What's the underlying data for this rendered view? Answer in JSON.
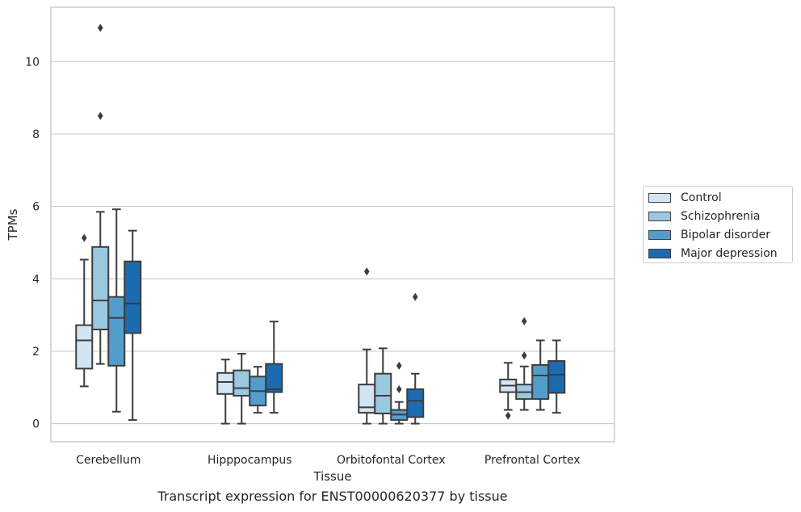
{
  "chart_data": {
    "type": "boxplot",
    "title": "",
    "caption": "Transcript expression for ENST00000620377 by tissue",
    "xlabel": "Tissue",
    "ylabel": "TPMs",
    "ylim": [
      -0.5,
      11.5
    ],
    "yticks": [
      "0",
      "2",
      "4",
      "6",
      "8",
      "10"
    ],
    "ytick_values": [
      0,
      2,
      4,
      6,
      8,
      10
    ],
    "categories": [
      "Cerebellum",
      "Hipppocampus",
      "Orbitofontal Cortex",
      "Prefrontal Cortex"
    ],
    "grid": "horizontal",
    "legend_position": "right",
    "series": [
      {
        "name": "Control",
        "color": "#d3e4f3",
        "boxes": [
          {
            "whislo": 1.03,
            "q1": 1.52,
            "med": 2.3,
            "q3": 2.72,
            "whishi": 4.53,
            "fliers": [
              5.13
            ]
          },
          {
            "whislo": 0.0,
            "q1": 0.82,
            "med": 1.15,
            "q3": 1.4,
            "whishi": 1.77,
            "fliers": []
          },
          {
            "whislo": 0.0,
            "q1": 0.3,
            "med": 0.45,
            "q3": 1.08,
            "whishi": 2.05,
            "fliers": [
              4.2
            ]
          },
          {
            "whislo": 0.38,
            "q1": 0.87,
            "med": 1.05,
            "q3": 1.22,
            "whishi": 1.68,
            "fliers": [
              0.22
            ]
          }
        ]
      },
      {
        "name": "Schizophrenia",
        "color": "#9ac8e0",
        "boxes": [
          {
            "whislo": 1.65,
            "q1": 2.6,
            "med": 3.4,
            "q3": 4.88,
            "whishi": 5.85,
            "fliers": [
              8.5,
              10.93
            ]
          },
          {
            "whislo": 0.0,
            "q1": 0.77,
            "med": 0.98,
            "q3": 1.47,
            "whishi": 1.93,
            "fliers": []
          },
          {
            "whislo": 0.0,
            "q1": 0.28,
            "med": 0.77,
            "q3": 1.38,
            "whishi": 2.08,
            "fliers": []
          },
          {
            "whislo": 0.38,
            "q1": 0.68,
            "med": 0.87,
            "q3": 1.08,
            "whishi": 1.58,
            "fliers": [
              1.88,
              2.83
            ]
          }
        ]
      },
      {
        "name": "Bipolar disorder",
        "color": "#529dcc",
        "boxes": [
          {
            "whislo": 0.33,
            "q1": 1.6,
            "med": 2.92,
            "q3": 3.5,
            "whishi": 5.92,
            "fliers": []
          },
          {
            "whislo": 0.3,
            "q1": 0.5,
            "med": 0.9,
            "q3": 1.3,
            "whishi": 1.57,
            "fliers": []
          },
          {
            "whislo": 0.0,
            "q1": 0.1,
            "med": 0.25,
            "q3": 0.38,
            "whishi": 0.6,
            "fliers": [
              0.95,
              1.6
            ]
          },
          {
            "whislo": 0.38,
            "q1": 0.68,
            "med": 1.33,
            "q3": 1.62,
            "whishi": 2.3,
            "fliers": []
          }
        ]
      },
      {
        "name": "Major depression",
        "color": "#1c6bb0",
        "boxes": [
          {
            "whislo": 0.1,
            "q1": 2.5,
            "med": 3.32,
            "q3": 4.48,
            "whishi": 5.33,
            "fliers": []
          },
          {
            "whislo": 0.3,
            "q1": 0.87,
            "med": 0.95,
            "q3": 1.65,
            "whishi": 2.82,
            "fliers": []
          },
          {
            "whislo": 0.0,
            "q1": 0.18,
            "med": 0.63,
            "q3": 0.95,
            "whishi": 1.38,
            "fliers": [
              3.5
            ]
          },
          {
            "whislo": 0.3,
            "q1": 0.85,
            "med": 1.35,
            "q3": 1.73,
            "whishi": 2.3,
            "fliers": []
          }
        ]
      }
    ]
  }
}
